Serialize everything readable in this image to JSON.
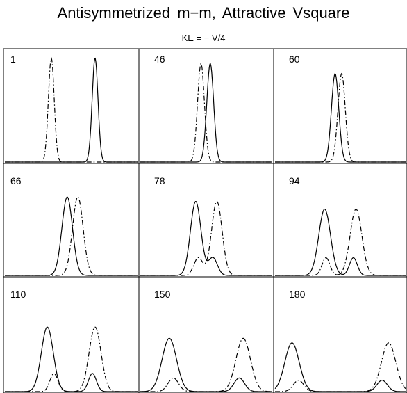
{
  "title": "Antisymmetrized m−m, Attractive Vsquare",
  "subtitle": "KE = − V/4",
  "chart_data": {
    "type": "line",
    "xlabel": "",
    "ylabel": "",
    "grid": false,
    "legend": "none",
    "line_styles": [
      "solid",
      "dash-dot"
    ],
    "panels": [
      {
        "label": "1",
        "curves": [
          {
            "style": "solid",
            "peaks": [
              {
                "x": 0.68,
                "h": 0.93,
                "w": 0.022
              }
            ]
          },
          {
            "style": "dash-dot",
            "peaks": [
              {
                "x": 0.35,
                "h": 0.93,
                "w": 0.022
              }
            ]
          }
        ]
      },
      {
        "label": "46",
        "curves": [
          {
            "style": "solid",
            "peaks": [
              {
                "x": 0.53,
                "h": 0.88,
                "w": 0.026
              }
            ]
          },
          {
            "style": "dash-dot",
            "peaks": [
              {
                "x": 0.46,
                "h": 0.88,
                "w": 0.026
              }
            ]
          }
        ]
      },
      {
        "label": "60",
        "curves": [
          {
            "style": "solid",
            "peaks": [
              {
                "x": 0.46,
                "h": 0.79,
                "w": 0.028
              }
            ]
          },
          {
            "style": "dash-dot",
            "peaks": [
              {
                "x": 0.51,
                "h": 0.79,
                "w": 0.028
              }
            ]
          }
        ]
      },
      {
        "label": "66",
        "curves": [
          {
            "style": "solid",
            "peaks": [
              {
                "x": 0.47,
                "h": 0.71,
                "w": 0.04
              }
            ]
          },
          {
            "style": "dash-dot",
            "peaks": [
              {
                "x": 0.55,
                "h": 0.71,
                "w": 0.04
              }
            ]
          }
        ]
      },
      {
        "label": "78",
        "curves": [
          {
            "style": "solid",
            "peaks": [
              {
                "x": 0.42,
                "h": 0.67,
                "w": 0.04
              },
              {
                "x": 0.55,
                "h": 0.16,
                "w": 0.034
              }
            ]
          },
          {
            "style": "dash-dot",
            "peaks": [
              {
                "x": 0.58,
                "h": 0.67,
                "w": 0.04
              },
              {
                "x": 0.44,
                "h": 0.16,
                "w": 0.034
              }
            ]
          }
        ]
      },
      {
        "label": "94",
        "curves": [
          {
            "style": "solid",
            "peaks": [
              {
                "x": 0.38,
                "h": 0.6,
                "w": 0.045
              },
              {
                "x": 0.6,
                "h": 0.16,
                "w": 0.03
              }
            ]
          },
          {
            "style": "dash-dot",
            "peaks": [
              {
                "x": 0.62,
                "h": 0.6,
                "w": 0.045
              },
              {
                "x": 0.39,
                "h": 0.16,
                "w": 0.03
              }
            ]
          }
        ]
      },
      {
        "label": "110",
        "curves": [
          {
            "style": "solid",
            "peaks": [
              {
                "x": 0.32,
                "h": 0.57,
                "w": 0.045
              },
              {
                "x": 0.66,
                "h": 0.16,
                "w": 0.03
              }
            ]
          },
          {
            "style": "dash-dot",
            "peaks": [
              {
                "x": 0.68,
                "h": 0.57,
                "w": 0.045
              },
              {
                "x": 0.37,
                "h": 0.16,
                "w": 0.03
              }
            ]
          }
        ]
      },
      {
        "label": "150",
        "curves": [
          {
            "style": "solid",
            "peaks": [
              {
                "x": 0.22,
                "h": 0.47,
                "w": 0.055
              },
              {
                "x": 0.75,
                "h": 0.12,
                "w": 0.04
              }
            ]
          },
          {
            "style": "dash-dot",
            "peaks": [
              {
                "x": 0.78,
                "h": 0.47,
                "w": 0.055
              },
              {
                "x": 0.25,
                "h": 0.12,
                "w": 0.04
              }
            ]
          }
        ]
      },
      {
        "label": "180",
        "curves": [
          {
            "style": "solid",
            "peaks": [
              {
                "x": 0.13,
                "h": 0.43,
                "w": 0.055
              },
              {
                "x": 0.82,
                "h": 0.1,
                "w": 0.04
              }
            ]
          },
          {
            "style": "dash-dot",
            "peaks": [
              {
                "x": 0.87,
                "h": 0.43,
                "w": 0.055
              },
              {
                "x": 0.18,
                "h": 0.1,
                "w": 0.04
              }
            ]
          }
        ]
      }
    ]
  }
}
